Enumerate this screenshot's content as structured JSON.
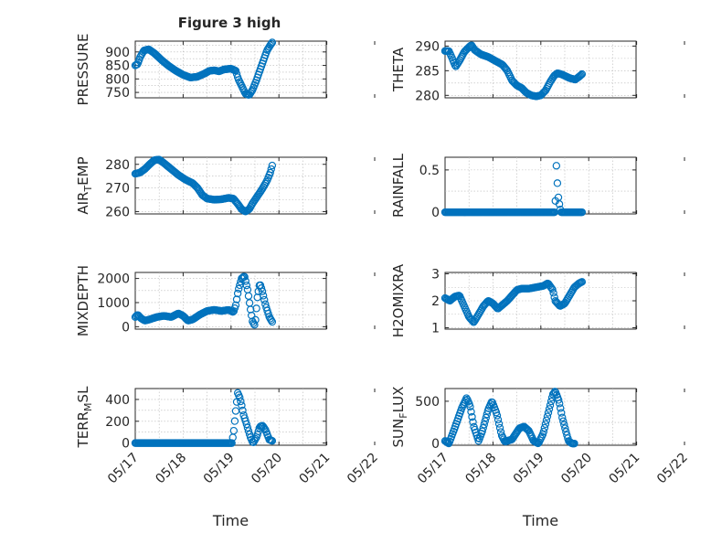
{
  "figure_title": "Figure 3 high",
  "chart_data": [
    {
      "type": "scatter",
      "title": "Figure 3 high",
      "ylabel": "PRESSURE",
      "xlabel": "",
      "x_domain": [
        "05/17",
        "05/21"
      ],
      "ylim": [
        730,
        940
      ],
      "yticks": [
        750,
        800,
        850,
        900
      ],
      "xticks": [
        "05/17",
        "05/18",
        "05/19",
        "05/20",
        "05/21",
        "05/22"
      ],
      "show_xticklabels": false,
      "grid": true,
      "marker_color": "#0072BD",
      "points_per_series": 140,
      "keyframes": [
        [
          0.0,
          850
        ],
        [
          0.05,
          855
        ],
        [
          0.1,
          880
        ],
        [
          0.18,
          905
        ],
        [
          0.28,
          910
        ],
        [
          0.4,
          895
        ],
        [
          0.55,
          870
        ],
        [
          0.7,
          848
        ],
        [
          0.85,
          830
        ],
        [
          1.0,
          815
        ],
        [
          1.15,
          805
        ],
        [
          1.3,
          808
        ],
        [
          1.45,
          820
        ],
        [
          1.55,
          830
        ],
        [
          1.65,
          832
        ],
        [
          1.75,
          828
        ],
        [
          1.85,
          835
        ],
        [
          2.0,
          838
        ],
        [
          2.1,
          830
        ],
        [
          2.15,
          800
        ],
        [
          2.22,
          775
        ],
        [
          2.3,
          745
        ],
        [
          2.38,
          740
        ],
        [
          2.45,
          760
        ],
        [
          2.52,
          790
        ],
        [
          2.6,
          830
        ],
        [
          2.68,
          870
        ],
        [
          2.75,
          905
        ],
        [
          2.82,
          925
        ],
        [
          2.86,
          935
        ]
      ]
    },
    {
      "type": "scatter",
      "title": "",
      "ylabel": "THETA",
      "xlabel": "",
      "x_domain": [
        "05/17",
        "05/21"
      ],
      "ylim": [
        279.5,
        291
      ],
      "yticks": [
        280,
        285,
        290
      ],
      "xticks": [
        "05/17",
        "05/18",
        "05/19",
        "05/20",
        "05/21",
        "05/22"
      ],
      "show_xticklabels": false,
      "grid": true,
      "marker_color": "#0072BD",
      "points_per_series": 140,
      "keyframes": [
        [
          0.0,
          289
        ],
        [
          0.08,
          289
        ],
        [
          0.15,
          287.5
        ],
        [
          0.22,
          285.8
        ],
        [
          0.3,
          287
        ],
        [
          0.4,
          288.8
        ],
        [
          0.5,
          289.8
        ],
        [
          0.55,
          290.2
        ],
        [
          0.62,
          289.2
        ],
        [
          0.75,
          288.3
        ],
        [
          0.9,
          287.8
        ],
        [
          1.05,
          287
        ],
        [
          1.2,
          286.2
        ],
        [
          1.3,
          285
        ],
        [
          1.4,
          283
        ],
        [
          1.5,
          282
        ],
        [
          1.6,
          281.5
        ],
        [
          1.7,
          280.5
        ],
        [
          1.8,
          280
        ],
        [
          1.9,
          279.8
        ],
        [
          2.0,
          280
        ],
        [
          2.1,
          281
        ],
        [
          2.2,
          282.8
        ],
        [
          2.28,
          284
        ],
        [
          2.35,
          284.5
        ],
        [
          2.45,
          284.2
        ],
        [
          2.6,
          283.5
        ],
        [
          2.72,
          283.2
        ],
        [
          2.8,
          283.8
        ],
        [
          2.86,
          284.3
        ]
      ]
    },
    {
      "type": "scatter",
      "title": "",
      "ylabel": "AIR_TEMP",
      "xlabel": "",
      "x_domain": [
        "05/17",
        "05/21"
      ],
      "ylim": [
        259,
        283
      ],
      "yticks": [
        260,
        270,
        280
      ],
      "xticks": [
        "05/17",
        "05/18",
        "05/19",
        "05/20",
        "05/21",
        "05/22"
      ],
      "show_xticklabels": false,
      "grid": true,
      "marker_color": "#0072BD",
      "points_per_series": 140,
      "keyframes": [
        [
          0.0,
          276
        ],
        [
          0.1,
          276.5
        ],
        [
          0.2,
          278
        ],
        [
          0.3,
          280
        ],
        [
          0.4,
          281.8
        ],
        [
          0.5,
          282
        ],
        [
          0.6,
          280.5
        ],
        [
          0.75,
          278
        ],
        [
          0.9,
          275.5
        ],
        [
          1.05,
          273.5
        ],
        [
          1.2,
          272
        ],
        [
          1.3,
          270
        ],
        [
          1.4,
          267
        ],
        [
          1.5,
          265.5
        ],
        [
          1.65,
          265
        ],
        [
          1.8,
          265.2
        ],
        [
          1.95,
          265.8
        ],
        [
          2.05,
          265.5
        ],
        [
          2.15,
          263
        ],
        [
          2.22,
          261
        ],
        [
          2.3,
          260
        ],
        [
          2.38,
          261
        ],
        [
          2.45,
          263.5
        ],
        [
          2.55,
          266.5
        ],
        [
          2.65,
          269.5
        ],
        [
          2.75,
          273
        ],
        [
          2.82,
          276.5
        ],
        [
          2.86,
          279.5
        ]
      ]
    },
    {
      "type": "scatter",
      "title": "",
      "ylabel": "RAINFALL",
      "xlabel": "",
      "x_domain": [
        "05/17",
        "05/21"
      ],
      "ylim": [
        -0.02,
        0.65
      ],
      "yticks": [
        0,
        0.5
      ],
      "xticks": [
        "05/17",
        "05/18",
        "05/19",
        "05/20",
        "05/21",
        "05/22"
      ],
      "show_xticklabels": false,
      "grid": true,
      "marker_color": "#0072BD",
      "points_per_series": 140,
      "keyframes": [
        [
          0.0,
          0
        ],
        [
          2.3,
          0
        ],
        [
          2.32,
          0.6
        ],
        [
          2.34,
          0.4
        ],
        [
          2.36,
          0.2
        ],
        [
          2.38,
          0.12
        ],
        [
          2.4,
          0.05
        ],
        [
          2.42,
          0
        ],
        [
          2.86,
          0
        ]
      ]
    },
    {
      "type": "scatter",
      "title": "",
      "ylabel": "MIXDEPTH",
      "xlabel": "",
      "x_domain": [
        "05/17",
        "05/21"
      ],
      "ylim": [
        -100,
        2250
      ],
      "yticks": [
        0,
        1000,
        2000
      ],
      "xticks": [
        "05/17",
        "05/18",
        "05/19",
        "05/20",
        "05/21",
        "05/22"
      ],
      "show_xticklabels": false,
      "grid": true,
      "marker_color": "#0072BD",
      "points_per_series": 140,
      "keyframes": [
        [
          0.0,
          400
        ],
        [
          0.05,
          500
        ],
        [
          0.12,
          350
        ],
        [
          0.2,
          250
        ],
        [
          0.3,
          300
        ],
        [
          0.45,
          400
        ],
        [
          0.6,
          450
        ],
        [
          0.75,
          400
        ],
        [
          0.9,
          550
        ],
        [
          1.0,
          450
        ],
        [
          1.1,
          250
        ],
        [
          1.2,
          300
        ],
        [
          1.35,
          500
        ],
        [
          1.5,
          650
        ],
        [
          1.65,
          700
        ],
        [
          1.8,
          650
        ],
        [
          1.95,
          700
        ],
        [
          2.05,
          600
        ],
        [
          2.1,
          900
        ],
        [
          2.15,
          1500
        ],
        [
          2.22,
          2000
        ],
        [
          2.28,
          2100
        ],
        [
          2.35,
          1500
        ],
        [
          2.4,
          800
        ],
        [
          2.45,
          200
        ],
        [
          2.5,
          50
        ],
        [
          2.55,
          1200
        ],
        [
          2.6,
          1800
        ],
        [
          2.65,
          1500
        ],
        [
          2.72,
          900
        ],
        [
          2.8,
          400
        ],
        [
          2.86,
          200
        ]
      ]
    },
    {
      "type": "scatter",
      "title": "",
      "ylabel": "H2OMIXRA",
      "xlabel": "",
      "x_domain": [
        "05/17",
        "05/21"
      ],
      "ylim": [
        0.95,
        3.05
      ],
      "yticks": [
        1,
        2,
        3
      ],
      "xticks": [
        "05/17",
        "05/18",
        "05/19",
        "05/20",
        "05/21",
        "05/22"
      ],
      "show_xticklabels": false,
      "grid": true,
      "marker_color": "#0072BD",
      "points_per_series": 140,
      "keyframes": [
        [
          0.0,
          2.1
        ],
        [
          0.1,
          2.0
        ],
        [
          0.2,
          2.15
        ],
        [
          0.3,
          2.2
        ],
        [
          0.4,
          1.8
        ],
        [
          0.5,
          1.4
        ],
        [
          0.6,
          1.2
        ],
        [
          0.7,
          1.5
        ],
        [
          0.8,
          1.8
        ],
        [
          0.9,
          2.0
        ],
        [
          1.0,
          1.9
        ],
        [
          1.1,
          1.7
        ],
        [
          1.2,
          1.85
        ],
        [
          1.3,
          2.0
        ],
        [
          1.4,
          2.2
        ],
        [
          1.5,
          2.4
        ],
        [
          1.6,
          2.45
        ],
        [
          1.75,
          2.45
        ],
        [
          1.9,
          2.5
        ],
        [
          2.05,
          2.55
        ],
        [
          2.15,
          2.65
        ],
        [
          2.25,
          2.4
        ],
        [
          2.3,
          2.0
        ],
        [
          2.4,
          1.8
        ],
        [
          2.5,
          1.9
        ],
        [
          2.6,
          2.2
        ],
        [
          2.7,
          2.5
        ],
        [
          2.8,
          2.65
        ],
        [
          2.86,
          2.7
        ]
      ]
    },
    {
      "type": "scatter",
      "title": "",
      "ylabel": "TERR_MSL",
      "xlabel": "Time",
      "x_domain": [
        "05/17",
        "05/21"
      ],
      "ylim": [
        -20,
        500
      ],
      "yticks": [
        0,
        200,
        400
      ],
      "xticks": [
        "05/17",
        "05/18",
        "05/19",
        "05/20",
        "05/21",
        "05/22"
      ],
      "show_xticklabels": true,
      "grid": true,
      "marker_color": "#0072BD",
      "points_per_series": 140,
      "keyframes": [
        [
          0.0,
          0
        ],
        [
          2.02,
          0
        ],
        [
          2.06,
          120
        ],
        [
          2.1,
          300
        ],
        [
          2.14,
          460
        ],
        [
          2.18,
          420
        ],
        [
          2.22,
          350
        ],
        [
          2.26,
          260
        ],
        [
          2.32,
          180
        ],
        [
          2.4,
          60
        ],
        [
          2.46,
          0
        ],
        [
          2.54,
          60
        ],
        [
          2.6,
          150
        ],
        [
          2.66,
          160
        ],
        [
          2.72,
          120
        ],
        [
          2.8,
          30
        ],
        [
          2.86,
          20
        ]
      ]
    },
    {
      "type": "scatter",
      "title": "",
      "ylabel": "SUN_FLUX",
      "xlabel": "Time",
      "x_domain": [
        "05/17",
        "05/21"
      ],
      "ylim": [
        -20,
        650
      ],
      "yticks": [
        0,
        500
      ],
      "xticks": [
        "05/17",
        "05/18",
        "05/19",
        "05/20",
        "05/21",
        "05/22"
      ],
      "show_xticklabels": true,
      "grid": true,
      "marker_color": "#0072BD",
      "points_per_series": 140,
      "keyframes": [
        [
          0.0,
          30
        ],
        [
          0.08,
          0
        ],
        [
          0.2,
          180
        ],
        [
          0.35,
          420
        ],
        [
          0.45,
          540
        ],
        [
          0.52,
          450
        ],
        [
          0.6,
          200
        ],
        [
          0.7,
          30
        ],
        [
          0.78,
          150
        ],
        [
          0.9,
          400
        ],
        [
          0.98,
          500
        ],
        [
          1.08,
          350
        ],
        [
          1.18,
          100
        ],
        [
          1.25,
          20
        ],
        [
          1.4,
          50
        ],
        [
          1.55,
          180
        ],
        [
          1.65,
          200
        ],
        [
          1.75,
          150
        ],
        [
          1.85,
          30
        ],
        [
          1.95,
          0
        ],
        [
          2.05,
          120
        ],
        [
          2.15,
          350
        ],
        [
          2.25,
          580
        ],
        [
          2.3,
          620
        ],
        [
          2.38,
          500
        ],
        [
          2.45,
          300
        ],
        [
          2.52,
          150
        ],
        [
          2.58,
          30
        ],
        [
          2.65,
          0
        ],
        [
          2.7,
          0
        ]
      ]
    }
  ]
}
